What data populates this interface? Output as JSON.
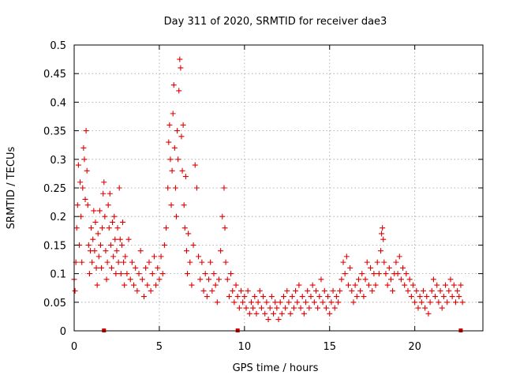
{
  "chart_data": {
    "type": "scatter",
    "title": "Day 311 of 2020, SRMTID for receiver dae3",
    "xlabel": "GPS time / hours",
    "ylabel": "SRMTID / TECUs",
    "xlim": [
      0,
      24
    ],
    "ylim": [
      0,
      0.5
    ],
    "x_ticks": [
      0,
      5,
      10,
      15,
      20
    ],
    "x_tick_labels": [
      "0",
      "5",
      "10",
      "15",
      "20"
    ],
    "y_ticks": [
      0,
      0.05,
      0.1,
      0.15,
      0.2,
      0.25,
      0.3,
      0.35,
      0.4,
      0.45,
      0.5
    ],
    "y_tick_labels": [
      "0",
      "0.05",
      "0.1",
      "0.15",
      "0.2",
      "0.25",
      "0.3",
      "0.35",
      "0.4",
      "0.45",
      "0.5"
    ],
    "grid": true,
    "marker": "+",
    "series_color": "#e00000",
    "gap_markers_x": [
      1.75,
      9.6,
      22.7
    ],
    "series": [
      {
        "name": "SRMTID",
        "points": [
          [
            0.0,
            0.09
          ],
          [
            0.05,
            0.07
          ],
          [
            0.1,
            0.12
          ],
          [
            0.15,
            0.18
          ],
          [
            0.2,
            0.22
          ],
          [
            0.25,
            0.29
          ],
          [
            0.3,
            0.15
          ],
          [
            0.35,
            0.26
          ],
          [
            0.4,
            0.2
          ],
          [
            0.45,
            0.12
          ],
          [
            0.5,
            0.25
          ],
          [
            0.55,
            0.32
          ],
          [
            0.6,
            0.3
          ],
          [
            0.65,
            0.23
          ],
          [
            0.7,
            0.35
          ],
          [
            0.75,
            0.28
          ],
          [
            0.8,
            0.22
          ],
          [
            0.85,
            0.15
          ],
          [
            0.9,
            0.1
          ],
          [
            0.95,
            0.14
          ],
          [
            1.0,
            0.18
          ],
          [
            1.05,
            0.12
          ],
          [
            1.1,
            0.16
          ],
          [
            1.15,
            0.21
          ],
          [
            1.2,
            0.14
          ],
          [
            1.25,
            0.19
          ],
          [
            1.3,
            0.11
          ],
          [
            1.35,
            0.08
          ],
          [
            1.4,
            0.17
          ],
          [
            1.45,
            0.13
          ],
          [
            1.5,
            0.21
          ],
          [
            1.55,
            0.15
          ],
          [
            1.6,
            0.11
          ],
          [
            1.65,
            0.18
          ],
          [
            1.7,
            0.24
          ],
          [
            1.75,
            0.26
          ],
          [
            1.8,
            0.2
          ],
          [
            1.85,
            0.14
          ],
          [
            1.9,
            0.09
          ],
          [
            1.95,
            0.12
          ],
          [
            2.0,
            0.22
          ],
          [
            2.05,
            0.18
          ],
          [
            2.1,
            0.24
          ],
          [
            2.15,
            0.15
          ],
          [
            2.2,
            0.11
          ],
          [
            2.25,
            0.19
          ],
          [
            2.3,
            0.13
          ],
          [
            2.35,
            0.2
          ],
          [
            2.4,
            0.16
          ],
          [
            2.45,
            0.1
          ],
          [
            2.5,
            0.14
          ],
          [
            2.55,
            0.18
          ],
          [
            2.6,
            0.12
          ],
          [
            2.65,
            0.25
          ],
          [
            2.7,
            0.16
          ],
          [
            2.75,
            0.1
          ],
          [
            2.8,
            0.15
          ],
          [
            2.85,
            0.19
          ],
          [
            2.9,
            0.12
          ],
          [
            2.95,
            0.08
          ],
          [
            3.0,
            0.13
          ],
          [
            3.1,
            0.1
          ],
          [
            3.2,
            0.16
          ],
          [
            3.3,
            0.09
          ],
          [
            3.4,
            0.12
          ],
          [
            3.5,
            0.08
          ],
          [
            3.6,
            0.11
          ],
          [
            3.7,
            0.07
          ],
          [
            3.8,
            0.1
          ],
          [
            3.9,
            0.14
          ],
          [
            4.0,
            0.09
          ],
          [
            4.1,
            0.06
          ],
          [
            4.2,
            0.11
          ],
          [
            4.3,
            0.08
          ],
          [
            4.4,
            0.12
          ],
          [
            4.5,
            0.07
          ],
          [
            4.6,
            0.1
          ],
          [
            4.7,
            0.13
          ],
          [
            4.8,
            0.08
          ],
          [
            4.9,
            0.11
          ],
          [
            5.0,
            0.09
          ],
          [
            5.1,
            0.13
          ],
          [
            5.2,
            0.1
          ],
          [
            5.3,
            0.15
          ],
          [
            5.4,
            0.18
          ],
          [
            5.5,
            0.25
          ],
          [
            5.55,
            0.33
          ],
          [
            5.6,
            0.36
          ],
          [
            5.65,
            0.3
          ],
          [
            5.7,
            0.22
          ],
          [
            5.75,
            0.28
          ],
          [
            5.8,
            0.38
          ],
          [
            5.85,
            0.43
          ],
          [
            5.9,
            0.32
          ],
          [
            5.95,
            0.25
          ],
          [
            6.0,
            0.2
          ],
          [
            6.05,
            0.35
          ],
          [
            6.1,
            0.3
          ],
          [
            6.15,
            0.42
          ],
          [
            6.2,
            0.475
          ],
          [
            6.25,
            0.46
          ],
          [
            6.3,
            0.34
          ],
          [
            6.35,
            0.28
          ],
          [
            6.4,
            0.36
          ],
          [
            6.45,
            0.22
          ],
          [
            6.5,
            0.18
          ],
          [
            6.55,
            0.27
          ],
          [
            6.6,
            0.14
          ],
          [
            6.65,
            0.1
          ],
          [
            6.7,
            0.17
          ],
          [
            6.8,
            0.12
          ],
          [
            6.9,
            0.08
          ],
          [
            7.0,
            0.15
          ],
          [
            7.1,
            0.29
          ],
          [
            7.2,
            0.25
          ],
          [
            7.3,
            0.13
          ],
          [
            7.4,
            0.09
          ],
          [
            7.5,
            0.12
          ],
          [
            7.6,
            0.07
          ],
          [
            7.7,
            0.1
          ],
          [
            7.8,
            0.06
          ],
          [
            7.9,
            0.09
          ],
          [
            8.0,
            0.12
          ],
          [
            8.1,
            0.07
          ],
          [
            8.2,
            0.1
          ],
          [
            8.3,
            0.08
          ],
          [
            8.4,
            0.05
          ],
          [
            8.5,
            0.09
          ],
          [
            8.6,
            0.14
          ],
          [
            8.7,
            0.2
          ],
          [
            8.8,
            0.25
          ],
          [
            8.85,
            0.18
          ],
          [
            8.9,
            0.12
          ],
          [
            9.0,
            0.09
          ],
          [
            9.1,
            0.06
          ],
          [
            9.2,
            0.1
          ],
          [
            9.3,
            0.07
          ],
          [
            9.4,
            0.05
          ],
          [
            9.5,
            0.08
          ],
          [
            9.6,
            0.06
          ],
          [
            9.7,
            0.04
          ],
          [
            9.8,
            0.07
          ],
          [
            9.9,
            0.05
          ],
          [
            10.0,
            0.06
          ],
          [
            10.1,
            0.04
          ],
          [
            10.2,
            0.07
          ],
          [
            10.3,
            0.03
          ],
          [
            10.4,
            0.05
          ],
          [
            10.5,
            0.04
          ],
          [
            10.6,
            0.06
          ],
          [
            10.7,
            0.03
          ],
          [
            10.8,
            0.05
          ],
          [
            10.9,
            0.07
          ],
          [
            11.0,
            0.04
          ],
          [
            11.1,
            0.06
          ],
          [
            11.2,
            0.03
          ],
          [
            11.3,
            0.05
          ],
          [
            11.4,
            0.02
          ],
          [
            11.5,
            0.04
          ],
          [
            11.6,
            0.06
          ],
          [
            11.7,
            0.03
          ],
          [
            11.8,
            0.05
          ],
          [
            11.9,
            0.04
          ],
          [
            12.0,
            0.02
          ],
          [
            12.1,
            0.05
          ],
          [
            12.2,
            0.03
          ],
          [
            12.3,
            0.06
          ],
          [
            12.4,
            0.04
          ],
          [
            12.5,
            0.07
          ],
          [
            12.6,
            0.05
          ],
          [
            12.7,
            0.03
          ],
          [
            12.8,
            0.06
          ],
          [
            12.9,
            0.04
          ],
          [
            13.0,
            0.07
          ],
          [
            13.1,
            0.05
          ],
          [
            13.2,
            0.08
          ],
          [
            13.3,
            0.04
          ],
          [
            13.4,
            0.06
          ],
          [
            13.5,
            0.03
          ],
          [
            13.6,
            0.05
          ],
          [
            13.7,
            0.07
          ],
          [
            13.8,
            0.04
          ],
          [
            13.9,
            0.06
          ],
          [
            14.0,
            0.08
          ],
          [
            14.1,
            0.05
          ],
          [
            14.2,
            0.07
          ],
          [
            14.3,
            0.04
          ],
          [
            14.4,
            0.06
          ],
          [
            14.5,
            0.09
          ],
          [
            14.6,
            0.05
          ],
          [
            14.7,
            0.07
          ],
          [
            14.8,
            0.04
          ],
          [
            14.9,
            0.06
          ],
          [
            15.0,
            0.03
          ],
          [
            15.1,
            0.05
          ],
          [
            15.2,
            0.07
          ],
          [
            15.3,
            0.04
          ],
          [
            15.4,
            0.06
          ],
          [
            15.5,
            0.05
          ],
          [
            15.6,
            0.07
          ],
          [
            15.7,
            0.09
          ],
          [
            15.8,
            0.12
          ],
          [
            15.9,
            0.1
          ],
          [
            16.0,
            0.13
          ],
          [
            16.1,
            0.08
          ],
          [
            16.2,
            0.11
          ],
          [
            16.3,
            0.07
          ],
          [
            16.4,
            0.05
          ],
          [
            16.5,
            0.08
          ],
          [
            16.6,
            0.06
          ],
          [
            16.7,
            0.09
          ],
          [
            16.8,
            0.07
          ],
          [
            16.9,
            0.1
          ],
          [
            17.0,
            0.06
          ],
          [
            17.1,
            0.09
          ],
          [
            17.2,
            0.12
          ],
          [
            17.3,
            0.08
          ],
          [
            17.4,
            0.11
          ],
          [
            17.5,
            0.07
          ],
          [
            17.6,
            0.1
          ],
          [
            17.7,
            0.08
          ],
          [
            17.8,
            0.12
          ],
          [
            17.9,
            0.1
          ],
          [
            18.0,
            0.14
          ],
          [
            18.05,
            0.17
          ],
          [
            18.1,
            0.18
          ],
          [
            18.15,
            0.16
          ],
          [
            18.2,
            0.12
          ],
          [
            18.3,
            0.1
          ],
          [
            18.4,
            0.08
          ],
          [
            18.5,
            0.11
          ],
          [
            18.6,
            0.09
          ],
          [
            18.7,
            0.07
          ],
          [
            18.8,
            0.1
          ],
          [
            18.9,
            0.12
          ],
          [
            19.0,
            0.1
          ],
          [
            19.1,
            0.13
          ],
          [
            19.2,
            0.09
          ],
          [
            19.3,
            0.11
          ],
          [
            19.4,
            0.08
          ],
          [
            19.5,
            0.1
          ],
          [
            19.6,
            0.07
          ],
          [
            19.7,
            0.09
          ],
          [
            19.8,
            0.06
          ],
          [
            19.9,
            0.08
          ],
          [
            20.0,
            0.05
          ],
          [
            20.1,
            0.07
          ],
          [
            20.2,
            0.04
          ],
          [
            20.3,
            0.06
          ],
          [
            20.4,
            0.05
          ],
          [
            20.5,
            0.07
          ],
          [
            20.6,
            0.04
          ],
          [
            20.7,
            0.06
          ],
          [
            20.8,
            0.03
          ],
          [
            20.9,
            0.05
          ],
          [
            21.0,
            0.07
          ],
          [
            21.1,
            0.09
          ],
          [
            21.2,
            0.06
          ],
          [
            21.3,
            0.08
          ],
          [
            21.4,
            0.05
          ],
          [
            21.5,
            0.07
          ],
          [
            21.6,
            0.04
          ],
          [
            21.7,
            0.06
          ],
          [
            21.8,
            0.08
          ],
          [
            21.9,
            0.05
          ],
          [
            22.0,
            0.07
          ],
          [
            22.1,
            0.09
          ],
          [
            22.2,
            0.06
          ],
          [
            22.3,
            0.08
          ],
          [
            22.4,
            0.05
          ],
          [
            22.5,
            0.07
          ],
          [
            22.6,
            0.06
          ],
          [
            22.7,
            0.08
          ],
          [
            22.8,
            0.05
          ]
        ]
      }
    ]
  }
}
